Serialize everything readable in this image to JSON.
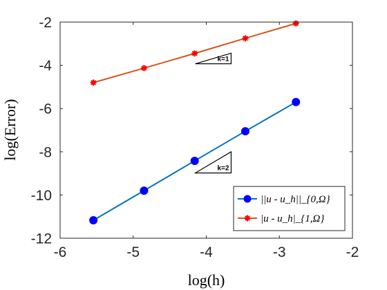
{
  "chart_data": {
    "type": "line",
    "xlabel": "log(h)",
    "ylabel": "log(Error)",
    "xlim": [
      -6,
      -2
    ],
    "ylim": [
      -12,
      -2
    ],
    "xticks": [
      -6,
      -5,
      -4,
      -3,
      -2
    ],
    "yticks": [
      -12,
      -10,
      -8,
      -6,
      -4,
      -2
    ],
    "xtick_labels": [
      "-6",
      "-5",
      "-4",
      "-3",
      "-2"
    ],
    "ytick_labels": [
      "-12",
      "-10",
      "-8",
      "-6",
      "-4",
      "-2"
    ],
    "grid": false,
    "legend_position": "bottom-right",
    "series": [
      {
        "name": "||u - u_h||_{0,Ω}",
        "color": "#0072BD",
        "marker": "circle",
        "marker_color": "#0000FF",
        "x": [
          -5.545,
          -4.852,
          -4.159,
          -3.466,
          -2.773
        ],
        "y": [
          -11.17,
          -9.8,
          -8.42,
          -7.05,
          -5.7
        ]
      },
      {
        "name": "|u - u_h|_{1,Ω}",
        "color": "#D95319",
        "marker": "star",
        "marker_color": "#FF0000",
        "x": [
          -5.545,
          -4.852,
          -4.159,
          -3.466,
          -2.773
        ],
        "y": [
          -4.8,
          -4.13,
          -3.45,
          -2.75,
          -2.06
        ]
      }
    ],
    "annotations": [
      {
        "label": "k=1",
        "slope": 1,
        "x": [
          -4.15,
          -3.66
        ],
        "y_base": -3.93
      },
      {
        "label": "k=2",
        "slope": 2,
        "x": [
          -4.15,
          -3.66
        ],
        "y_base": -8.98
      }
    ]
  }
}
